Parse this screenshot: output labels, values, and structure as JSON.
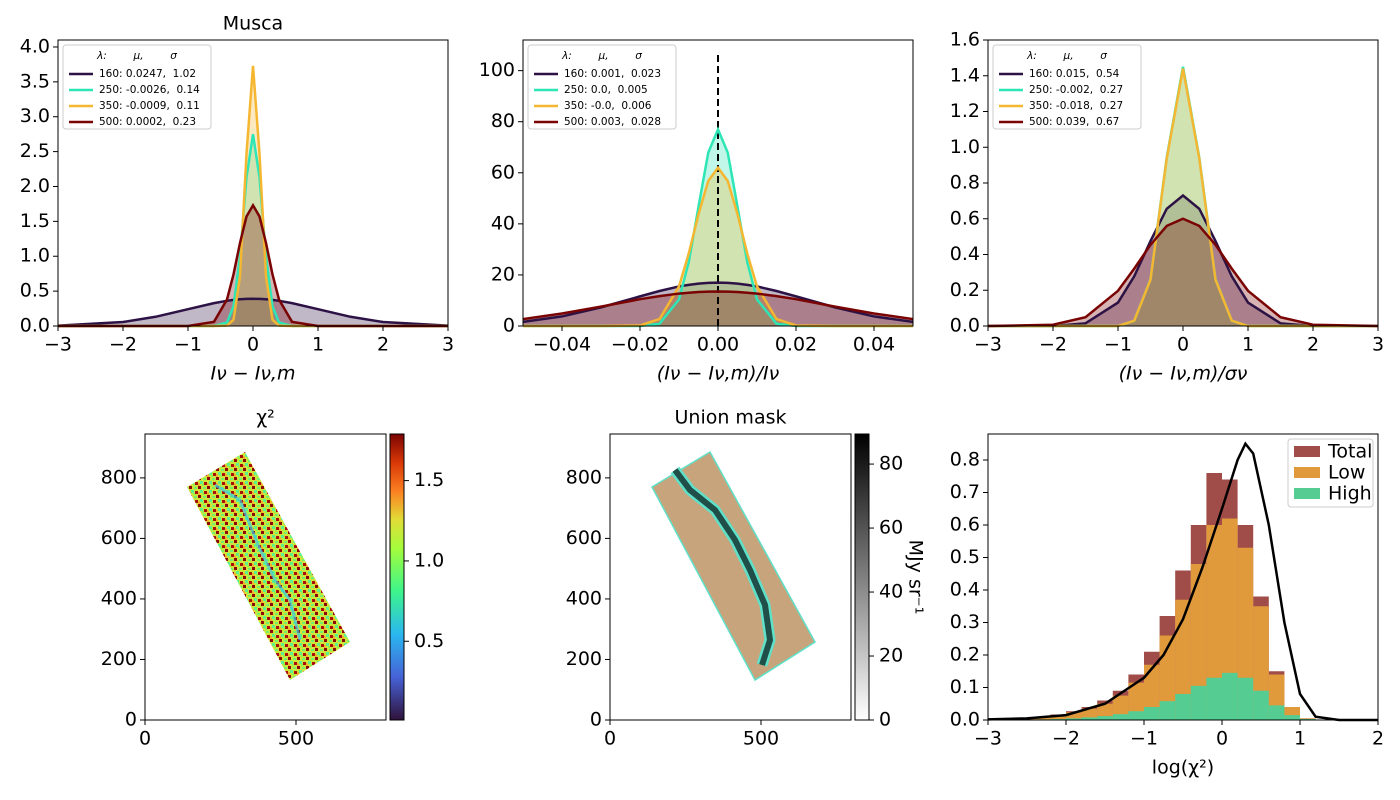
{
  "chart_data": [
    {
      "type": "line",
      "title": "Musca",
      "xlabel": "Iν − Iν,m",
      "legend_title": "λ:        μ,        σ",
      "legend": "upper left",
      "x": [
        -3,
        -2,
        -1.5,
        -1,
        -0.6,
        -0.4,
        -0.3,
        -0.2,
        -0.1,
        0,
        0.1,
        0.2,
        0.3,
        0.4,
        0.6,
        1,
        1.5,
        2,
        3
      ],
      "series": [
        {
          "name": "160: 0.0247,  1.02",
          "color": "#2d1245",
          "values": [
            0.005,
            0.057,
            0.132,
            0.241,
            0.328,
            0.361,
            0.374,
            0.383,
            0.388,
            0.39,
            0.388,
            0.383,
            0.374,
            0.361,
            0.328,
            0.241,
            0.132,
            0.057,
            0.005
          ]
        },
        {
          "name": "250: -0.0026,  0.14",
          "color": "#2ee6b5",
          "values": [
            0,
            0,
            0,
            0,
            0,
            0.05,
            0.28,
            0.99,
            2.13,
            2.75,
            2.13,
            0.99,
            0.28,
            0.05,
            0,
            0,
            0,
            0,
            0
          ]
        },
        {
          "name": "350: -0.0009,  0.11",
          "color": "#f5b731",
          "values": [
            0,
            0,
            0,
            0,
            0,
            0.005,
            0.09,
            0.71,
            2.47,
            3.73,
            2.47,
            0.71,
            0.09,
            0.005,
            0,
            0,
            0,
            0,
            0
          ]
        },
        {
          "name": "500: 0.0002,  0.23",
          "color": "#7a0403",
          "values": [
            0,
            0,
            0,
            0,
            0.06,
            0.38,
            0.74,
            1.19,
            1.57,
            1.73,
            1.57,
            1.19,
            0.74,
            0.38,
            0.06,
            0,
            0,
            0,
            0
          ]
        }
      ],
      "xlim": [
        -3,
        3
      ],
      "xticks": [
        {
          "value": -3,
          "label": "−3"
        },
        {
          "value": -2,
          "label": "−2"
        },
        {
          "value": -1,
          "label": "−1"
        },
        0,
        1,
        2,
        3
      ],
      "ylim": [
        0,
        4.1
      ],
      "yticks": [
        {
          "value": 0,
          "label": "0.0"
        },
        0.5,
        {
          "value": 1,
          "label": "1.0"
        },
        1.5,
        {
          "value": 2,
          "label": "2.0"
        },
        2.5,
        {
          "value": 3,
          "label": "3.0"
        },
        3.5,
        {
          "value": 4,
          "label": "4.0"
        }
      ]
    },
    {
      "type": "line",
      "xlabel": "(Iν − Iν,m)/Iν",
      "legend_title": "λ:        μ,        σ",
      "legend": "upper left",
      "vline_x": 0,
      "x": [
        -0.05,
        -0.04,
        -0.03,
        -0.02,
        -0.015,
        -0.01,
        -0.0075,
        -0.005,
        -0.0025,
        0,
        0.0025,
        0.005,
        0.0075,
        0.01,
        0.015,
        0.02,
        0.03,
        0.04,
        0.05
      ],
      "series": [
        {
          "name": "160: 0.001,  0.023",
          "color": "#2d1245",
          "values": [
            1.6,
            3.75,
            7.3,
            11.6,
            13.7,
            15.5,
            16.1,
            16.6,
            16.9,
            17,
            16.9,
            16.6,
            16.1,
            15.5,
            13.7,
            11.6,
            7.3,
            3.75,
            1.6
          ]
        },
        {
          "name": "250: 0.0,  0.005",
          "color": "#2ee6b5",
          "values": [
            0,
            0,
            0,
            0,
            0.9,
            10.4,
            25,
            46.7,
            67.9,
            77,
            67.9,
            46.7,
            25,
            10.4,
            0.9,
            0,
            0,
            0,
            0
          ]
        },
        {
          "name": "350: -0.0,  0.006",
          "color": "#f5b731",
          "values": [
            0,
            0,
            0,
            0.2,
            2.7,
            15.5,
            28.4,
            43.8,
            56.8,
            62,
            56.8,
            43.8,
            28.4,
            15.5,
            2.7,
            0.2,
            0,
            0,
            0
          ]
        },
        {
          "name": "500: 0.003,  0.028",
          "color": "#7a0403",
          "values": [
            2.7,
            4.9,
            7.6,
            10.5,
            11.7,
            12.7,
            13,
            13.3,
            13.45,
            13.5,
            13.45,
            13.3,
            13,
            12.7,
            11.7,
            10.5,
            7.6,
            4.9,
            2.7
          ]
        }
      ],
      "xlim": [
        -0.05,
        0.05
      ],
      "xticks": [
        {
          "value": -0.04,
          "label": "−0.04"
        },
        {
          "value": -0.02,
          "label": "−0.02"
        },
        {
          "value": 0,
          "label": "0.00"
        },
        {
          "value": 0.02,
          "label": "0.02"
        },
        {
          "value": 0.04,
          "label": "0.04"
        }
      ],
      "ylim": [
        0,
        112
      ],
      "yticks": [
        0,
        20,
        40,
        60,
        80,
        100
      ]
    },
    {
      "type": "line",
      "xlabel": "(Iν − Iν,m)/σν",
      "legend_title": "λ:        μ,        σ",
      "legend": "upper left",
      "x": [
        -3,
        -2,
        -1.5,
        -1,
        -0.75,
        -0.5,
        -0.25,
        0,
        0.25,
        0.5,
        0.75,
        1,
        1.5,
        2,
        3
      ],
      "series": [
        {
          "name": "160: 0.015,  0.54",
          "color": "#2d1245",
          "values": [
            0,
            0,
            0.015,
            0.131,
            0.278,
            0.475,
            0.656,
            0.73,
            0.656,
            0.475,
            0.278,
            0.131,
            0.015,
            0,
            0
          ]
        },
        {
          "name": "250: -0.002,  0.27",
          "color": "#2ee6b5",
          "values": [
            0,
            0,
            0,
            0,
            0.03,
            0.261,
            0.944,
            1.45,
            0.944,
            0.261,
            0.03,
            0,
            0,
            0,
            0
          ]
        },
        {
          "name": "350: -0.018,  0.27",
          "color": "#f5b731",
          "values": [
            0,
            0,
            0,
            0,
            0.03,
            0.259,
            0.938,
            1.44,
            0.938,
            0.259,
            0.03,
            0,
            0,
            0,
            0
          ]
        },
        {
          "name": "500: 0.039,  0.67",
          "color": "#7a0403",
          "values": [
            0,
            0.007,
            0.049,
            0.197,
            0.321,
            0.454,
            0.56,
            0.6,
            0.56,
            0.454,
            0.321,
            0.197,
            0.049,
            0.007,
            0
          ]
        }
      ],
      "xlim": [
        -3,
        3
      ],
      "xticks": [
        {
          "value": -3,
          "label": "−3"
        },
        {
          "value": -2,
          "label": "−2"
        },
        {
          "value": -1,
          "label": "−1"
        },
        0,
        1,
        2,
        3
      ],
      "ylim": [
        0,
        1.6
      ],
      "yticks": [
        {
          "value": 0,
          "label": "0.0"
        },
        0.2,
        0.4,
        0.6,
        0.8,
        {
          "value": 1,
          "label": "1.0"
        },
        1.2,
        1.4,
        1.6
      ]
    },
    {
      "type": "image",
      "title": "χ²",
      "xlim": [
        0,
        798
      ],
      "xticks": [
        0,
        500
      ],
      "ylim": [
        0,
        945
      ],
      "yticks": [
        0,
        200,
        400,
        600,
        800
      ],
      "colorbar": {
        "colormap": "turbo",
        "clim": [
          0.01,
          1.79
        ],
        "ticks": [
          0.5,
          {
            "value": 1,
            "label": "1.0"
          },
          1.5
        ]
      }
    },
    {
      "type": "image",
      "title": "Union mask",
      "xlim": [
        0,
        798
      ],
      "xticks": [
        0,
        500
      ],
      "ylim": [
        0,
        945
      ],
      "yticks": [
        0,
        200,
        400,
        600,
        800
      ],
      "colorbar": {
        "colormap": "gray",
        "clim": [
          0,
          89.4
        ],
        "ticks": [
          0,
          20,
          40,
          60,
          80
        ],
        "label": "MJy sr⁻¹"
      }
    },
    {
      "type": "histogram",
      "xlabel": "log(χ²)",
      "legend": "upper right",
      "bins": [
        -3,
        -2.8,
        -2.6,
        -2.4,
        -2.2,
        -2,
        -1.8,
        -1.6,
        -1.4,
        -1.2,
        -1,
        -0.8,
        -0.6,
        -0.4,
        -0.2,
        0,
        0.2,
        0.4,
        0.6,
        0.8,
        1,
        1.2,
        1.4,
        1.6,
        1.8,
        2
      ],
      "series": [
        {
          "name": "Total",
          "color": "#a04c48",
          "values": [
            0.002,
            0.003,
            0.006,
            0.01,
            0.017,
            0.027,
            0.04,
            0.06,
            0.09,
            0.14,
            0.21,
            0.32,
            0.46,
            0.6,
            0.76,
            0.74,
            0.6,
            0.38,
            0.15,
            0.04,
            0.005,
            0,
            0,
            0,
            0
          ]
        },
        {
          "name": "Low",
          "color": "#e09a3c",
          "values": [
            0.002,
            0.003,
            0.005,
            0.009,
            0.015,
            0.024,
            0.035,
            0.05,
            0.075,
            0.115,
            0.17,
            0.26,
            0.37,
            0.48,
            0.6,
            0.62,
            0.53,
            0.35,
            0.14,
            0.04,
            0.005,
            0,
            0,
            0,
            0
          ]
        },
        {
          "name": "High",
          "color": "#55cd92",
          "values": [
            0,
            0,
            0.001,
            0.002,
            0.003,
            0.005,
            0.008,
            0.012,
            0.018,
            0.027,
            0.04,
            0.058,
            0.08,
            0.105,
            0.13,
            0.145,
            0.13,
            0.09,
            0.045,
            0.015,
            0.003,
            0,
            0,
            0,
            0
          ]
        }
      ],
      "line": {
        "color": "#000000",
        "x": [
          -3,
          -2.5,
          -2,
          -1.5,
          -1,
          -0.75,
          -0.5,
          -0.25,
          0,
          0.2,
          0.3,
          0.4,
          0.6,
          0.8,
          1,
          1.2,
          1.5,
          2
        ],
        "values": [
          0.002,
          0.005,
          0.015,
          0.05,
          0.13,
          0.2,
          0.31,
          0.47,
          0.65,
          0.8,
          0.85,
          0.82,
          0.6,
          0.3,
          0.08,
          0.01,
          0,
          0
        ]
      },
      "xlim": [
        -3,
        2
      ],
      "xticks": [
        {
          "value": -3,
          "label": "−3"
        },
        {
          "value": -2,
          "label": "−2"
        },
        {
          "value": -1,
          "label": "−1"
        },
        0,
        1,
        2
      ],
      "ylim": [
        0,
        0.88
      ],
      "yticks": [
        {
          "value": 0,
          "label": "0.0"
        },
        0.1,
        0.2,
        0.3,
        0.4,
        0.5,
        0.6,
        0.7,
        0.8
      ]
    }
  ]
}
